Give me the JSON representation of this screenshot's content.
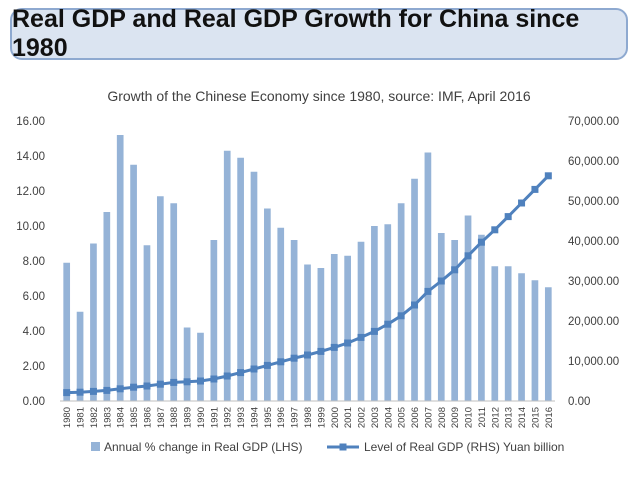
{
  "slide_title": "Real GDP and Real GDP Growth for China since 1980",
  "chart_data": {
    "type": "bar",
    "title": "Growth of the Chinese Economy since 1980, source: IMF, April 2016",
    "categories": [
      "1980",
      "1981",
      "1982",
      "1983",
      "1984",
      "1985",
      "1986",
      "1987",
      "1988",
      "1989",
      "1990",
      "1991",
      "1992",
      "1993",
      "1994",
      "1995",
      "1996",
      "1997",
      "1998",
      "1999",
      "2000",
      "2001",
      "2002",
      "2003",
      "2004",
      "2005",
      "2006",
      "2007",
      "2008",
      "2009",
      "2010",
      "2011",
      "2012",
      "2013",
      "2014",
      "2015",
      "2016"
    ],
    "series": [
      {
        "name": "Annual % change in Real GDP (LHS)",
        "kind": "bar",
        "axis": "left",
        "color": "#95b3d7",
        "values": [
          7.9,
          5.1,
          9.0,
          10.8,
          15.2,
          13.5,
          8.9,
          11.7,
          11.3,
          4.2,
          3.9,
          9.2,
          14.3,
          13.9,
          13.1,
          11.0,
          9.9,
          9.2,
          7.8,
          7.6,
          8.4,
          8.3,
          9.1,
          10.0,
          10.1,
          11.3,
          12.7,
          14.2,
          9.6,
          9.2,
          10.6,
          9.5,
          7.7,
          7.7,
          7.3,
          6.9,
          6.5
        ]
      },
      {
        "name": "Level of Real GDP (RHS) Yuan billion",
        "kind": "line",
        "axis": "right",
        "color": "#4f81bd",
        "values": [
          2100,
          2200,
          2400,
          2650,
          3050,
          3450,
          3750,
          4200,
          4650,
          4800,
          5000,
          5500,
          6250,
          7100,
          8000,
          8900,
          9800,
          10700,
          11500,
          12400,
          13400,
          14500,
          15900,
          17400,
          19200,
          21300,
          24000,
          27400,
          30000,
          32800,
          36300,
          39700,
          42800,
          46100,
          49500,
          52900,
          56300
        ]
      }
    ],
    "y_left": {
      "min": 0,
      "max": 16,
      "step": 2,
      "ticks": [
        "0.00",
        "2.00",
        "4.00",
        "6.00",
        "8.00",
        "10.00",
        "12.00",
        "14.00",
        "16.00"
      ]
    },
    "y_right": {
      "min": 0,
      "max": 70000,
      "step": 10000,
      "ticks": [
        "0.00",
        "10,000.00",
        "20,000.00",
        "30,000.00",
        "40,000.00",
        "50,000.00",
        "60,000.00",
        "70,000.00"
      ]
    },
    "legend": {
      "position": "bottom"
    }
  }
}
